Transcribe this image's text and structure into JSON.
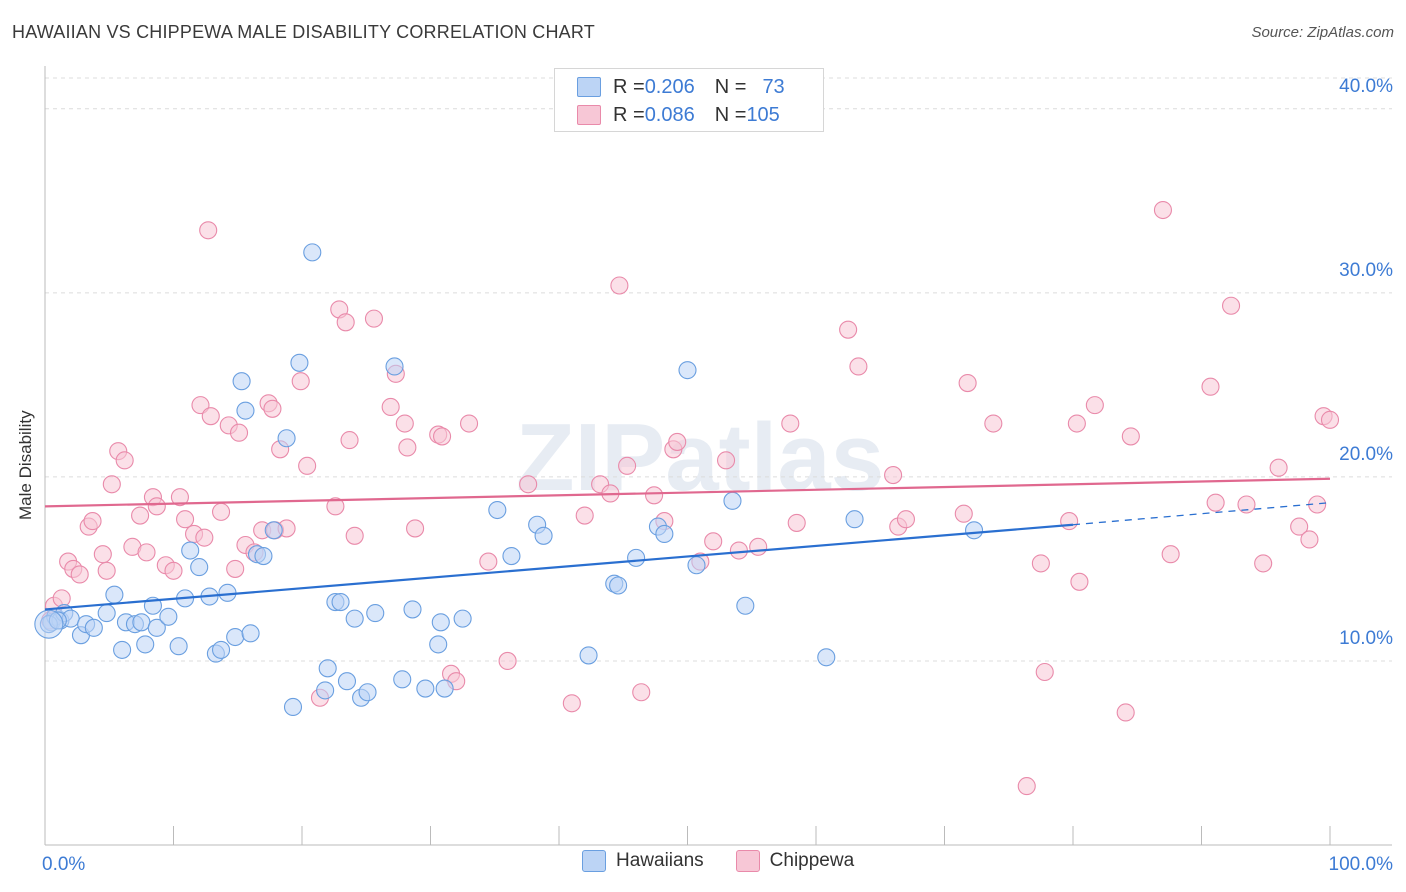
{
  "title": "HAWAIIAN VS CHIPPEWA MALE DISABILITY CORRELATION CHART",
  "source": "Source: ZipAtlas.com",
  "watermark": "ZIPatlas",
  "legend_stats": [
    {
      "r_label": "R = ",
      "r_value": "0.206",
      "n_label": "N = ",
      "n_value": "73"
    },
    {
      "r_label": "R = ",
      "r_value": "0.086",
      "n_label": "N = ",
      "n_value": "105"
    }
  ],
  "chart_data": {
    "type": "scatter",
    "title": "HAWAIIAN VS CHIPPEWA MALE DISABILITY CORRELATION CHART",
    "xlabel": "",
    "ylabel": "Male Disability",
    "xlim": [
      0,
      100
    ],
    "ylim": [
      0,
      42
    ],
    "x_tick_labels": [
      "0.0%",
      "100.0%"
    ],
    "y_ticks": [
      10,
      20,
      30,
      40
    ],
    "y_tick_labels": [
      "10.0%",
      "20.0%",
      "30.0%",
      "40.0%"
    ],
    "legend_position": "bottom-center",
    "series": [
      {
        "name": "Hawaiians",
        "color": "#6a9fe0",
        "fill": "#bcd4f5",
        "line_color": "#2a6fd0",
        "r": 0.206,
        "n": 73,
        "trend": {
          "x0": 0,
          "y0": 12.8,
          "x1": 80,
          "y1": 17.4,
          "dash_x1": 100,
          "dash_y1": 18.6
        },
        "points": [
          [
            0.5,
            12.1
          ],
          [
            0.8,
            12.4
          ],
          [
            1.2,
            12.2
          ],
          [
            1.5,
            12.6
          ],
          [
            2.0,
            12.3
          ],
          [
            2.8,
            11.4
          ],
          [
            3.2,
            12.0
          ],
          [
            3.8,
            11.8
          ],
          [
            4.8,
            12.6
          ],
          [
            5.4,
            13.6
          ],
          [
            6.0,
            10.6
          ],
          [
            6.3,
            12.1
          ],
          [
            7.0,
            12.0
          ],
          [
            7.5,
            12.1
          ],
          [
            7.8,
            10.9
          ],
          [
            8.4,
            13.0
          ],
          [
            8.7,
            11.8
          ],
          [
            9.6,
            12.4
          ],
          [
            10.4,
            10.8
          ],
          [
            10.9,
            13.4
          ],
          [
            11.3,
            16.0
          ],
          [
            12.0,
            15.1
          ],
          [
            12.8,
            13.5
          ],
          [
            13.3,
            10.4
          ],
          [
            13.7,
            10.6
          ],
          [
            14.2,
            13.7
          ],
          [
            14.8,
            11.3
          ],
          [
            15.3,
            25.2
          ],
          [
            15.6,
            23.6
          ],
          [
            16.0,
            11.5
          ],
          [
            16.5,
            15.8
          ],
          [
            17.0,
            15.7
          ],
          [
            17.8,
            17.1
          ],
          [
            18.8,
            22.1
          ],
          [
            19.3,
            7.5
          ],
          [
            19.8,
            26.2
          ],
          [
            20.8,
            32.2
          ],
          [
            21.8,
            8.4
          ],
          [
            22.0,
            9.6
          ],
          [
            22.6,
            13.2
          ],
          [
            23.0,
            13.2
          ],
          [
            23.5,
            8.9
          ],
          [
            24.1,
            12.3
          ],
          [
            24.6,
            8.0
          ],
          [
            25.1,
            8.3
          ],
          [
            25.7,
            12.6
          ],
          [
            27.2,
            26.0
          ],
          [
            27.8,
            9.0
          ],
          [
            28.6,
            12.8
          ],
          [
            29.6,
            8.5
          ],
          [
            30.6,
            10.9
          ],
          [
            30.8,
            12.1
          ],
          [
            31.1,
            8.5
          ],
          [
            32.5,
            12.3
          ],
          [
            35.2,
            18.2
          ],
          [
            36.3,
            15.7
          ],
          [
            38.3,
            17.4
          ],
          [
            38.8,
            16.8
          ],
          [
            42.3,
            10.3
          ],
          [
            44.3,
            14.2
          ],
          [
            44.6,
            14.1
          ],
          [
            46.0,
            15.6
          ],
          [
            47.7,
            17.3
          ],
          [
            48.2,
            16.9
          ],
          [
            50.0,
            25.8
          ],
          [
            50.7,
            15.2
          ],
          [
            53.5,
            18.7
          ],
          [
            54.5,
            13.0
          ],
          [
            60.8,
            10.2
          ],
          [
            63.0,
            17.7
          ],
          [
            72.3,
            17.1
          ],
          [
            0.3,
            12.0
          ],
          [
            1.0,
            12.2
          ]
        ]
      },
      {
        "name": "Chippewa",
        "color": "#e98aaa",
        "fill": "#f7c7d6",
        "line_color": "#e0688f",
        "r": 0.086,
        "n": 105,
        "trend": {
          "x0": 0,
          "y0": 18.4,
          "x1": 100,
          "y1": 19.9
        },
        "points": [
          [
            0.4,
            12.2
          ],
          [
            0.7,
            13.0
          ],
          [
            1.3,
            13.4
          ],
          [
            1.8,
            15.4
          ],
          [
            2.2,
            15.0
          ],
          [
            2.7,
            14.7
          ],
          [
            3.4,
            17.3
          ],
          [
            3.7,
            17.6
          ],
          [
            4.5,
            15.8
          ],
          [
            4.8,
            14.9
          ],
          [
            5.2,
            19.6
          ],
          [
            5.7,
            21.4
          ],
          [
            6.2,
            20.9
          ],
          [
            6.8,
            16.2
          ],
          [
            7.4,
            17.9
          ],
          [
            7.9,
            15.9
          ],
          [
            8.4,
            18.9
          ],
          [
            8.7,
            18.4
          ],
          [
            9.4,
            15.2
          ],
          [
            10.0,
            14.9
          ],
          [
            10.5,
            18.9
          ],
          [
            10.9,
            17.7
          ],
          [
            11.6,
            16.9
          ],
          [
            12.1,
            23.9
          ],
          [
            12.4,
            16.7
          ],
          [
            12.7,
            33.4
          ],
          [
            12.9,
            23.3
          ],
          [
            13.7,
            18.1
          ],
          [
            14.3,
            22.8
          ],
          [
            14.8,
            15.0
          ],
          [
            15.1,
            22.4
          ],
          [
            15.6,
            16.3
          ],
          [
            16.3,
            15.9
          ],
          [
            16.9,
            17.1
          ],
          [
            17.4,
            24.0
          ],
          [
            17.7,
            23.7
          ],
          [
            17.9,
            17.1
          ],
          [
            18.3,
            21.5
          ],
          [
            18.8,
            17.2
          ],
          [
            19.9,
            25.2
          ],
          [
            20.4,
            20.6
          ],
          [
            21.4,
            8.0
          ],
          [
            22.6,
            18.4
          ],
          [
            22.9,
            29.1
          ],
          [
            23.4,
            28.4
          ],
          [
            23.7,
            22.0
          ],
          [
            24.1,
            16.8
          ],
          [
            25.6,
            28.6
          ],
          [
            26.9,
            23.8
          ],
          [
            27.3,
            25.6
          ],
          [
            28.0,
            22.9
          ],
          [
            28.2,
            21.6
          ],
          [
            28.8,
            17.2
          ],
          [
            30.6,
            22.3
          ],
          [
            30.9,
            22.2
          ],
          [
            31.6,
            9.3
          ],
          [
            32.0,
            8.9
          ],
          [
            33.0,
            22.9
          ],
          [
            34.5,
            15.4
          ],
          [
            36.0,
            10.0
          ],
          [
            37.6,
            19.6
          ],
          [
            41.0,
            7.7
          ],
          [
            42.0,
            17.9
          ],
          [
            43.2,
            19.6
          ],
          [
            44.0,
            19.1
          ],
          [
            44.7,
            30.4
          ],
          [
            45.3,
            20.6
          ],
          [
            46.4,
            8.3
          ],
          [
            47.4,
            19.0
          ],
          [
            48.2,
            17.6
          ],
          [
            48.9,
            21.5
          ],
          [
            49.2,
            21.9
          ],
          [
            51.0,
            15.4
          ],
          [
            52.0,
            16.5
          ],
          [
            53.0,
            20.9
          ],
          [
            54.0,
            16.0
          ],
          [
            55.5,
            16.2
          ],
          [
            58.0,
            22.9
          ],
          [
            58.5,
            17.5
          ],
          [
            62.5,
            28.0
          ],
          [
            63.3,
            26.0
          ],
          [
            66.0,
            20.1
          ],
          [
            66.4,
            17.3
          ],
          [
            67.0,
            17.7
          ],
          [
            71.5,
            18.0
          ],
          [
            71.8,
            25.1
          ],
          [
            73.8,
            22.9
          ],
          [
            77.5,
            15.3
          ],
          [
            77.8,
            9.4
          ],
          [
            79.7,
            17.6
          ],
          [
            80.3,
            22.9
          ],
          [
            80.5,
            14.3
          ],
          [
            81.7,
            23.9
          ],
          [
            84.1,
            7.2
          ],
          [
            84.5,
            22.2
          ],
          [
            87.0,
            34.5
          ],
          [
            87.6,
            15.8
          ],
          [
            90.7,
            24.9
          ],
          [
            91.1,
            18.6
          ],
          [
            92.3,
            29.3
          ],
          [
            93.5,
            18.5
          ],
          [
            94.8,
            15.3
          ],
          [
            96.0,
            20.5
          ],
          [
            97.6,
            17.3
          ],
          [
            98.4,
            16.6
          ]
        ]
      }
    ]
  },
  "extra_points": [
    [
      76.4,
      3.2
    ],
    [
      99.0,
      18.5
    ],
    [
      99.5,
      23.3
    ],
    [
      100.0,
      23.1
    ]
  ]
}
